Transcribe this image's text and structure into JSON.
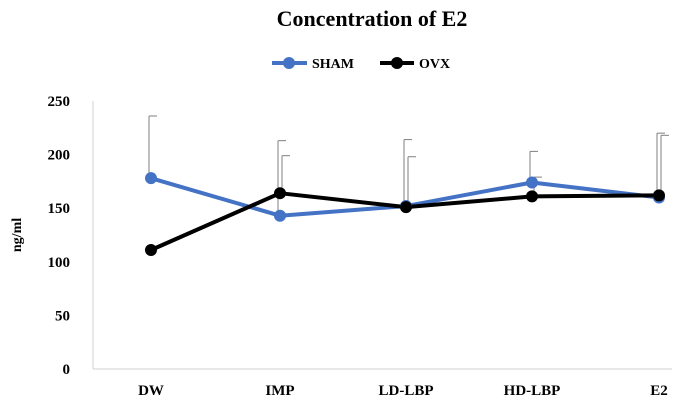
{
  "chart_data": {
    "type": "line",
    "title": "Concentration of E2",
    "xlabel": "",
    "ylabel": "ng/ml",
    "ylim": [
      0,
      250
    ],
    "yticks": [
      0,
      50,
      100,
      150,
      200,
      250
    ],
    "categories": [
      "DW",
      "IMP",
      "LD-LBP",
      "HD-LBP",
      "E2"
    ],
    "legend_position": "top-center",
    "grid": false,
    "series": [
      {
        "name": "SHAM",
        "color": "#4472C4",
        "values": [
          178,
          143,
          152,
          174,
          160
        ],
        "error_upper": [
          58,
          70,
          62,
          29,
          60
        ]
      },
      {
        "name": "OVX",
        "color": "#000000",
        "values": [
          111,
          164,
          151,
          161,
          162
        ],
        "error_upper": [
          0,
          35,
          47,
          18,
          56
        ]
      }
    ]
  }
}
